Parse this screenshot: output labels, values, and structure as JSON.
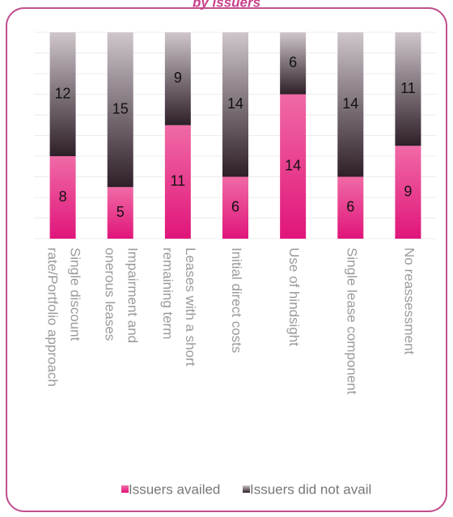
{
  "chart_data": {
    "type": "stacked_bar",
    "title": "by issuers",
    "categories": [
      "Single discount\nrate/Portfolio approach",
      "Impairment and\nonerous leases",
      "Leases with a short\nremaining term",
      "Initial direct costs",
      "Use of hindsight",
      "Single lease component",
      "No reassessment"
    ],
    "series": [
      {
        "name": "Issuers availed",
        "color": "#e8408a",
        "values": [
          8,
          5,
          11,
          6,
          14,
          6,
          9
        ]
      },
      {
        "name": "Issuers did not avail",
        "color": "#3a2a33",
        "values": [
          12,
          15,
          9,
          14,
          6,
          14,
          11
        ]
      }
    ],
    "ylim": [
      0,
      20
    ],
    "yticks": [
      0,
      2,
      4,
      6,
      8,
      10,
      12,
      14,
      16,
      18,
      20
    ],
    "grid": true,
    "legend": "bottom"
  }
}
